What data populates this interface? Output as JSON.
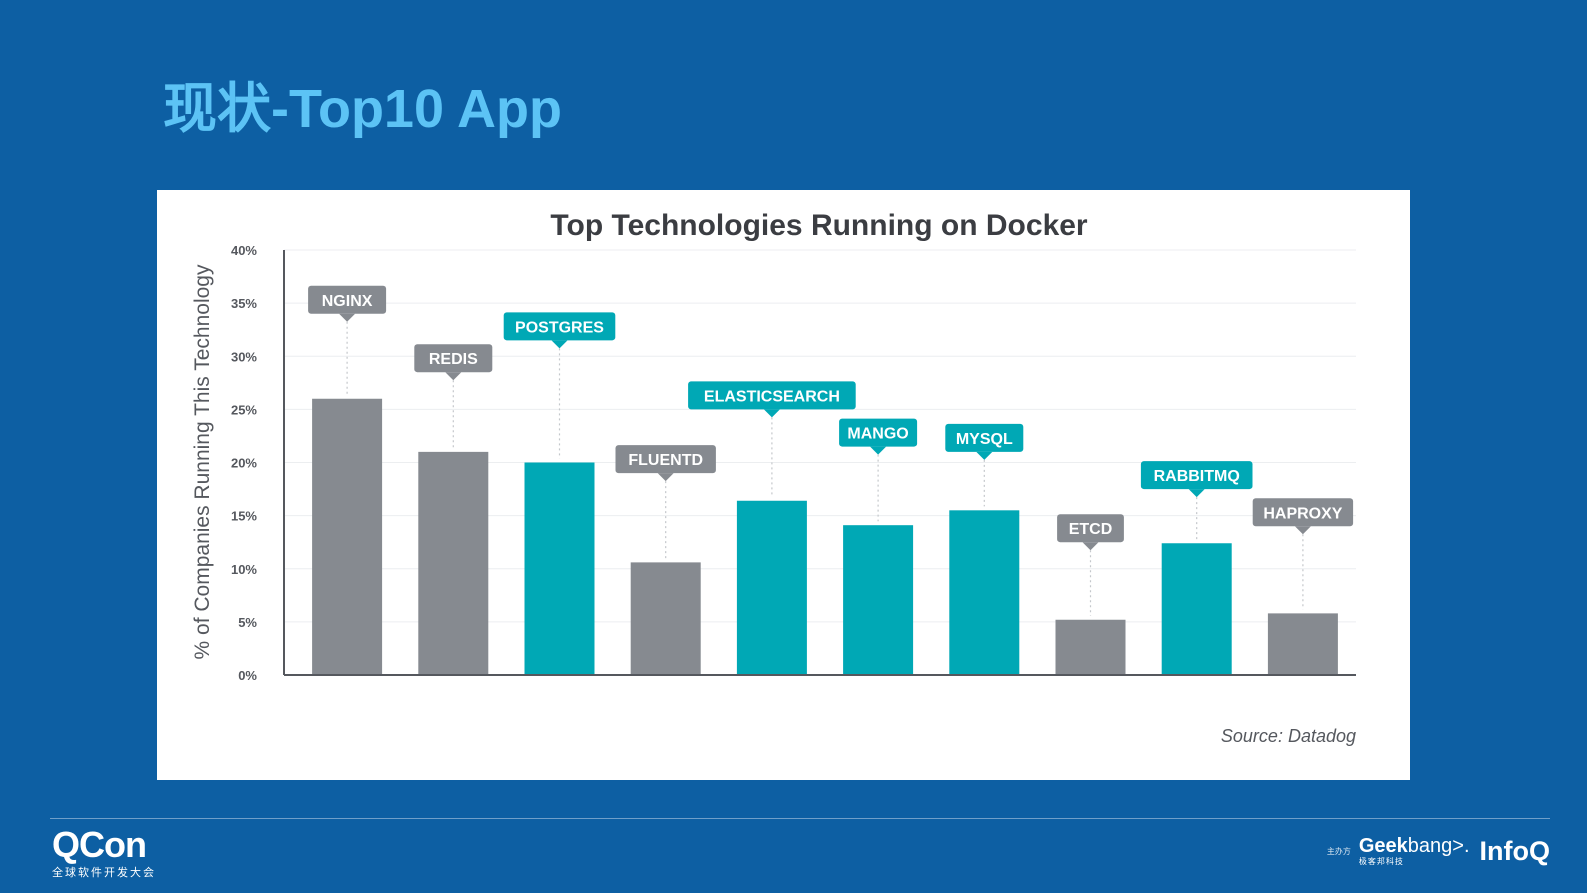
{
  "slide": {
    "title": "现状-Top10 App"
  },
  "chart_data": {
    "type": "bar",
    "title": "Top Technologies Running on Docker",
    "ylabel": "% of Companies Running This Technology",
    "xlabel": "",
    "ylim": [
      0,
      40
    ],
    "yticks": [
      "0%",
      "5%",
      "10%",
      "15%",
      "20%",
      "25%",
      "30%",
      "35%",
      "40%"
    ],
    "grid": true,
    "categories": [
      "NGINX",
      "REDIS",
      "POSTGRES",
      "FLUENTD",
      "ELASTICSEARCH",
      "MANGO",
      "MYSQL",
      "ETCD",
      "RABBITMQ",
      "HAPROXY"
    ],
    "values": [
      26,
      21,
      20,
      10.6,
      16.4,
      14.1,
      15.5,
      5.2,
      12.4,
      5.8
    ],
    "label_levels": [
      34,
      28.5,
      31.5,
      19,
      25,
      21.5,
      21,
      12.5,
      17.5,
      14
    ],
    "bar_colors": [
      "#868a90",
      "#868a90",
      "#00a8b5",
      "#868a90",
      "#00a8b5",
      "#00a8b5",
      "#00a8b5",
      "#868a90",
      "#00a8b5",
      "#868a90"
    ],
    "source": "Source: Datadog"
  },
  "colors": {
    "background": "#0d5fa3",
    "title": "#5cc3f5",
    "gray": "#868a90",
    "teal": "#00a8b5"
  },
  "footer": {
    "brand": "QCon",
    "brand_sub": "全球软件开发大会",
    "host_label": "主办方",
    "geek_name_bold": "Geek",
    "geek_name_rest": "bang>.",
    "geek_sub": "极客邦科技",
    "infoq": "InfoQ"
  }
}
